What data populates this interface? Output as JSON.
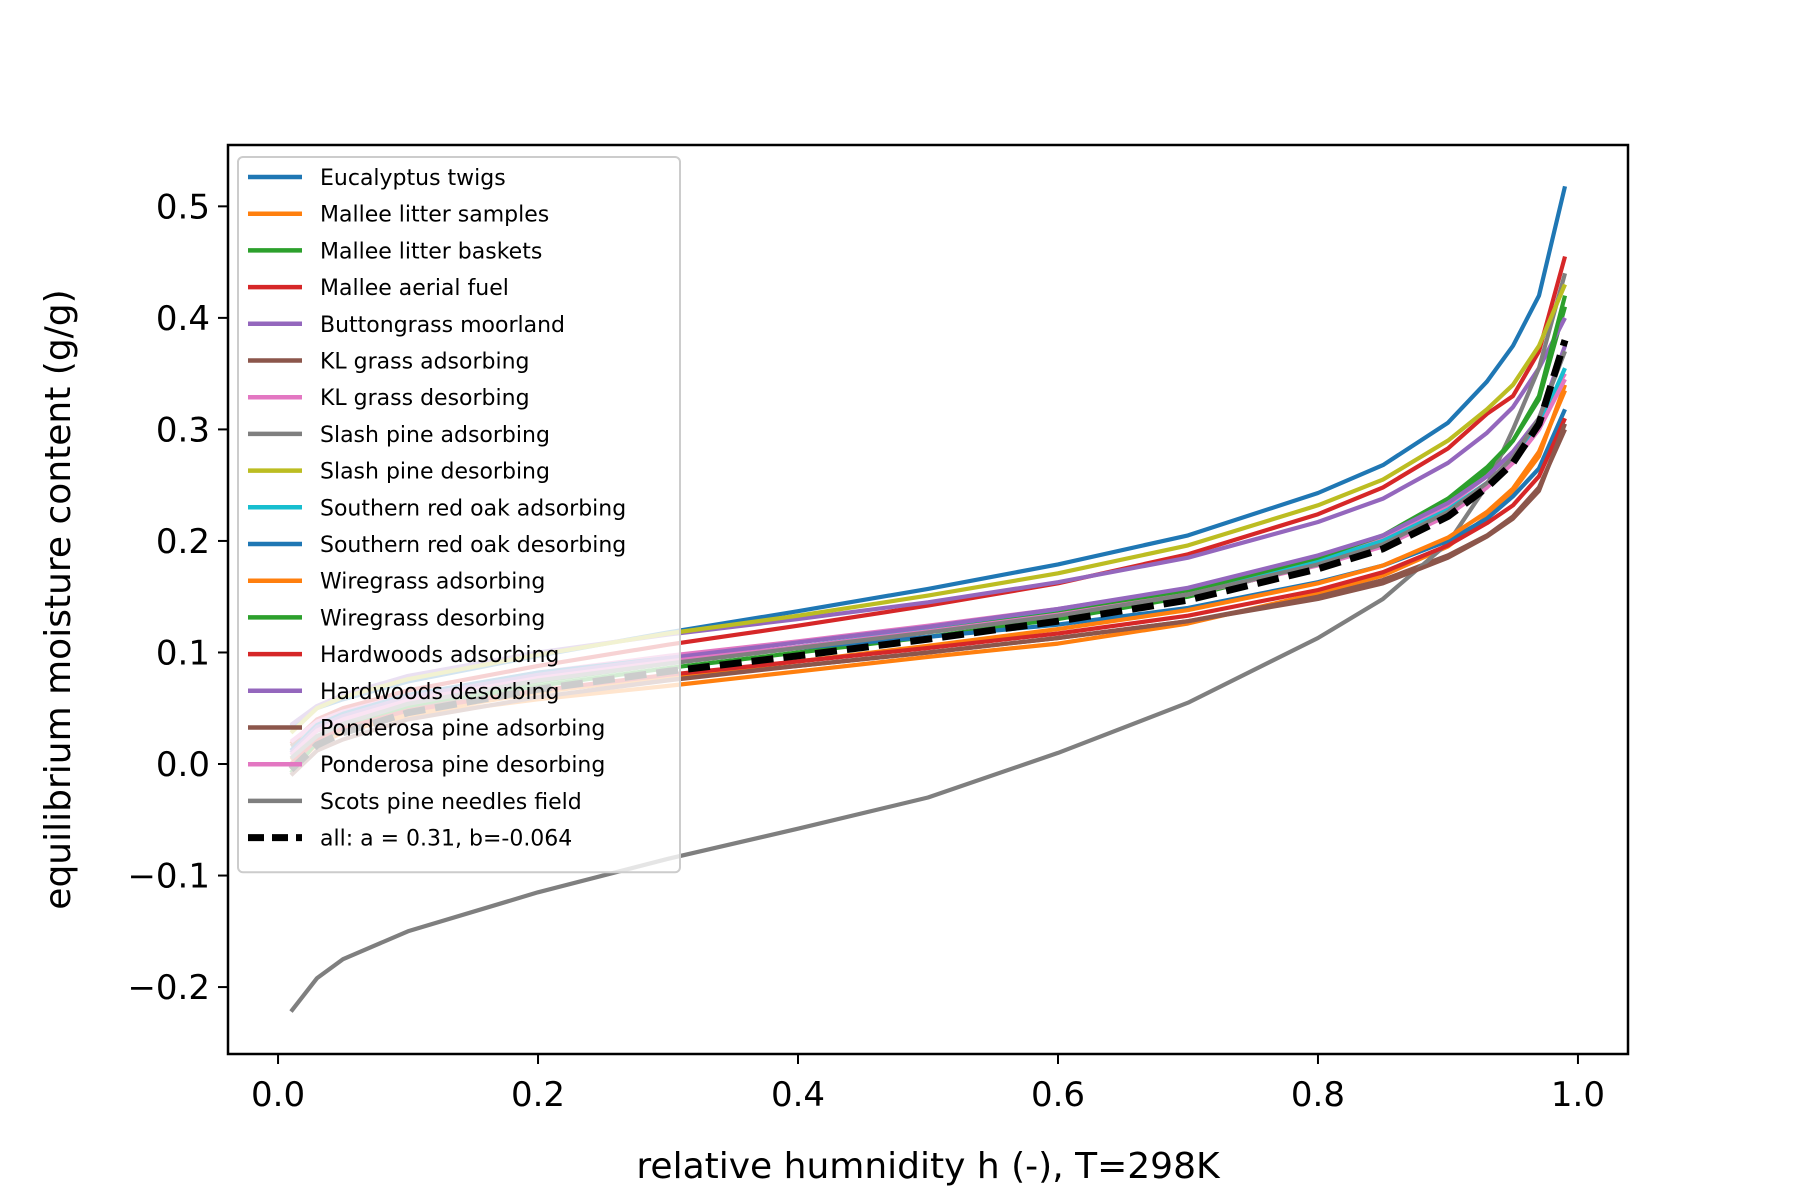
{
  "chart_data": {
    "type": "line",
    "xlabel": "relative humnidity h (-), T=298K",
    "ylabel": "equilibrium moisture content (g/g)",
    "xlim": [
      -0.0385,
      1.0385
    ],
    "ylim": [
      -0.26,
      0.555
    ],
    "x_ticks": [
      0.0,
      0.2,
      0.4,
      0.6,
      0.8,
      1.0
    ],
    "x_tick_labels": [
      "0.0",
      "0.2",
      "0.4",
      "0.6",
      "0.8",
      "1.0"
    ],
    "y_ticks": [
      -0.2,
      -0.1,
      0.0,
      0.1,
      0.2,
      0.3,
      0.4,
      0.5
    ],
    "y_tick_labels": [
      "−0.2",
      "−0.1",
      "0.0",
      "0.1",
      "0.2",
      "0.3",
      "0.4",
      "0.5"
    ],
    "grid": false,
    "legend_position": "upper-left",
    "x": [
      0.01,
      0.03,
      0.05,
      0.1,
      0.2,
      0.3,
      0.4,
      0.5,
      0.6,
      0.7,
      0.8,
      0.85,
      0.9,
      0.93,
      0.95,
      0.97,
      0.99
    ],
    "series": [
      {
        "name": "Eucalyptus twigs",
        "color": "#1f77b4",
        "style": "solid",
        "values": [
          0.034,
          0.05,
          0.058,
          0.074,
          0.097,
          0.118,
          0.137,
          0.157,
          0.179,
          0.205,
          0.243,
          0.268,
          0.306,
          0.343,
          0.375,
          0.42,
          0.518
        ]
      },
      {
        "name": "Mallee litter samples",
        "color": "#ff7f0e",
        "style": "solid",
        "values": [
          0.004,
          0.022,
          0.03,
          0.043,
          0.058,
          0.07,
          0.083,
          0.096,
          0.108,
          0.126,
          0.153,
          0.169,
          0.195,
          0.222,
          0.245,
          0.276,
          0.34
        ]
      },
      {
        "name": "Mallee litter baskets",
        "color": "#2ca02c",
        "style": "solid",
        "values": [
          0.0,
          0.02,
          0.032,
          0.05,
          0.07,
          0.086,
          0.1,
          0.114,
          0.13,
          0.15,
          0.18,
          0.2,
          0.235,
          0.262,
          0.29,
          0.327,
          0.41
        ]
      },
      {
        "name": "Mallee aerial fuel",
        "color": "#d62728",
        "style": "solid",
        "values": [
          0.018,
          0.04,
          0.05,
          0.066,
          0.088,
          0.107,
          0.124,
          0.142,
          0.162,
          0.188,
          0.224,
          0.248,
          0.283,
          0.314,
          0.33,
          0.37,
          0.455
        ]
      },
      {
        "name": "Buttongrass moorland",
        "color": "#9467bd",
        "style": "solid",
        "values": [
          0.035,
          0.052,
          0.062,
          0.079,
          0.1,
          0.116,
          0.13,
          0.145,
          0.163,
          0.185,
          0.217,
          0.238,
          0.27,
          0.297,
          0.32,
          0.355,
          0.4
        ]
      },
      {
        "name": "KL grass adsorbing",
        "color": "#8c564b",
        "style": "solid",
        "values": [
          0.016,
          0.03,
          0.038,
          0.05,
          0.065,
          0.077,
          0.088,
          0.1,
          0.113,
          0.128,
          0.15,
          0.165,
          0.187,
          0.205,
          0.222,
          0.248,
          0.3
        ]
      },
      {
        "name": "KL grass desorbing",
        "color": "#e377c2",
        "style": "solid",
        "values": [
          0.02,
          0.038,
          0.047,
          0.062,
          0.082,
          0.097,
          0.11,
          0.124,
          0.139,
          0.157,
          0.185,
          0.203,
          0.232,
          0.258,
          0.28,
          0.31,
          0.35
        ]
      },
      {
        "name": "Slash pine adsorbing",
        "color": "#7f7f7f",
        "style": "solid",
        "values": [
          -0.222,
          -0.192,
          -0.175,
          -0.15,
          -0.115,
          -0.085,
          -0.058,
          -0.03,
          0.01,
          0.055,
          0.113,
          0.148,
          0.198,
          0.25,
          0.3,
          0.355,
          0.44
        ]
      },
      {
        "name": "Slash pine desorbing",
        "color": "#bcbd22",
        "style": "solid",
        "values": [
          0.028,
          0.05,
          0.06,
          0.076,
          0.098,
          0.117,
          0.133,
          0.151,
          0.171,
          0.196,
          0.232,
          0.255,
          0.29,
          0.318,
          0.34,
          0.375,
          0.43
        ]
      },
      {
        "name": "Southern red oak adsorbing",
        "color": "#17becf",
        "style": "solid",
        "values": [
          0.01,
          0.03,
          0.04,
          0.056,
          0.076,
          0.091,
          0.105,
          0.12,
          0.136,
          0.155,
          0.182,
          0.2,
          0.228,
          0.252,
          0.273,
          0.302,
          0.355
        ]
      },
      {
        "name": "Southern red oak desorbing",
        "color": "#1f77b4",
        "style": "solid",
        "values": [
          0.012,
          0.035,
          0.045,
          0.062,
          0.082,
          0.095,
          0.104,
          0.114,
          0.125,
          0.14,
          0.163,
          0.178,
          0.2,
          0.22,
          0.24,
          0.265,
          0.318
        ]
      },
      {
        "name": "Wiregrass adsorbing",
        "color": "#ff7f0e",
        "style": "solid",
        "values": [
          -0.005,
          0.018,
          0.028,
          0.045,
          0.064,
          0.079,
          0.092,
          0.106,
          0.121,
          0.138,
          0.162,
          0.178,
          0.203,
          0.226,
          0.247,
          0.28,
          0.335
        ]
      },
      {
        "name": "Wiregrass desorbing",
        "color": "#2ca02c",
        "style": "solid",
        "values": [
          -0.008,
          0.02,
          0.032,
          0.052,
          0.074,
          0.09,
          0.104,
          0.119,
          0.135,
          0.155,
          0.185,
          0.205,
          0.238,
          0.266,
          0.29,
          0.33,
          0.42
        ]
      },
      {
        "name": "Hardwoods adsorbing",
        "color": "#d62728",
        "style": "solid",
        "values": [
          0.0,
          0.022,
          0.032,
          0.048,
          0.066,
          0.08,
          0.092,
          0.104,
          0.117,
          0.133,
          0.156,
          0.172,
          0.196,
          0.216,
          0.232,
          0.258,
          0.31
        ]
      },
      {
        "name": "Hardwoods desorbing",
        "color": "#9467bd",
        "style": "solid",
        "values": [
          0.01,
          0.033,
          0.043,
          0.06,
          0.08,
          0.095,
          0.109,
          0.123,
          0.139,
          0.158,
          0.187,
          0.205,
          0.234,
          0.258,
          0.28,
          0.31,
          0.375
        ]
      },
      {
        "name": "Ponderosa pine adsorbing",
        "color": "#8c564b",
        "style": "solid",
        "values": [
          -0.01,
          0.012,
          0.022,
          0.04,
          0.06,
          0.075,
          0.088,
          0.1,
          0.113,
          0.128,
          0.148,
          0.162,
          0.185,
          0.204,
          0.22,
          0.245,
          0.305
        ]
      },
      {
        "name": "Ponderosa pine desorbing",
        "color": "#e377c2",
        "style": "solid",
        "values": [
          0.008,
          0.03,
          0.04,
          0.057,
          0.077,
          0.092,
          0.105,
          0.119,
          0.134,
          0.152,
          0.178,
          0.195,
          0.223,
          0.248,
          0.27,
          0.3,
          0.345
        ]
      },
      {
        "name": "Scots pine needles field",
        "color": "#7f7f7f",
        "style": "solid",
        "values": [
          0.005,
          0.025,
          0.036,
          0.054,
          0.075,
          0.09,
          0.104,
          0.118,
          0.133,
          0.152,
          0.179,
          0.197,
          0.226,
          0.252,
          0.275,
          0.31,
          0.37
        ]
      },
      {
        "name": "all: a = 0.31, b=-0.064",
        "color": "#000000",
        "style": "dashed",
        "values": [
          -0.005,
          0.017,
          0.028,
          0.046,
          0.067,
          0.083,
          0.097,
          0.112,
          0.128,
          0.147,
          0.175,
          0.193,
          0.222,
          0.248,
          0.27,
          0.305,
          0.38
        ]
      }
    ]
  }
}
